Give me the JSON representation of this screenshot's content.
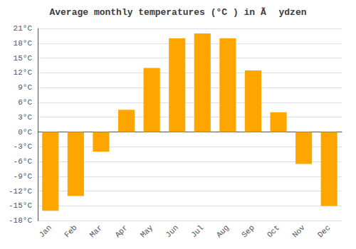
{
  "chart_data": {
    "type": "bar",
    "title": "Average monthly temperatures (°C ) in Ã ydzen",
    "categories": [
      "Jan",
      "Feb",
      "Mar",
      "Apr",
      "May",
      "Jun",
      "Jul",
      "Aug",
      "Sep",
      "Oct",
      "Nov",
      "Dec"
    ],
    "values": [
      -16,
      -13,
      -4,
      4.5,
      13,
      19,
      20,
      19,
      12.5,
      4,
      -6.5,
      -15
    ],
    "color": "#FFA500",
    "ylim": [
      -18,
      21
    ],
    "yticks": [
      {
        "value": -18,
        "label": "-18°C"
      },
      {
        "value": -15,
        "label": "-15°C"
      },
      {
        "value": -12,
        "label": "-12°C"
      },
      {
        "value": -9,
        "label": "-9°C"
      },
      {
        "value": -6,
        "label": "-6°C"
      },
      {
        "value": -3,
        "label": "-3°C"
      },
      {
        "value": 0,
        "label": "0°C"
      },
      {
        "value": 3,
        "label": "3°C"
      },
      {
        "value": 6,
        "label": "6°C"
      },
      {
        "value": 9,
        "label": "9°C"
      },
      {
        "value": 12,
        "label": "12°C"
      },
      {
        "value": 15,
        "label": "15°C"
      },
      {
        "value": 18,
        "label": "18°C"
      },
      {
        "value": 21,
        "label": "21°C"
      }
    ],
    "grid": true
  }
}
